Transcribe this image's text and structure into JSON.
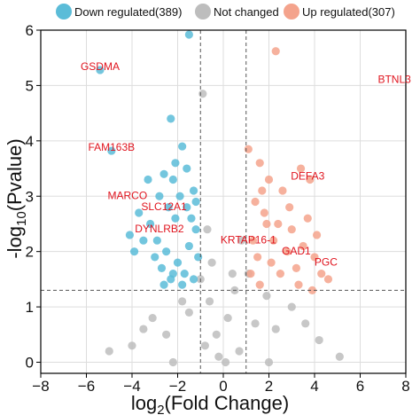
{
  "chart_data": {
    "type": "scatter",
    "subtype": "volcano",
    "xlabel_main": "log",
    "xlabel_sub": "2",
    "xlabel_rest": "(Fold Change)",
    "ylabel_pre": "-log",
    "ylabel_sub": "10",
    "ylabel_rest": "(Pvalue)",
    "xlim": [
      -8,
      8
    ],
    "ylim": [
      -0.2,
      6.0
    ],
    "xticks": [
      -8,
      -6,
      -4,
      -2,
      0,
      2,
      4,
      6,
      8
    ],
    "yticks": [
      0,
      1,
      2,
      3,
      4,
      5,
      6
    ],
    "grid": true,
    "legend_position": "top",
    "thresholds": {
      "x": [
        -1,
        1
      ],
      "y": 1.3
    },
    "series": [
      {
        "name": "Down regulated(389)",
        "color": "#5bbcd8",
        "points": [
          [
            -1.5,
            5.92
          ],
          [
            -5.4,
            5.28
          ],
          [
            -2.3,
            4.4
          ],
          [
            -4.9,
            3.82
          ],
          [
            -3.3,
            3.3
          ],
          [
            -2.6,
            3.4
          ],
          [
            -2.2,
            3.3
          ],
          [
            -1.9,
            3.0
          ],
          [
            -1.6,
            2.8
          ],
          [
            -1.4,
            2.6
          ],
          [
            -1.2,
            2.4
          ],
          [
            -3.7,
            2.7
          ],
          [
            -3.2,
            2.5
          ],
          [
            -2.9,
            2.2
          ],
          [
            -2.5,
            2.0
          ],
          [
            -2.0,
            1.8
          ],
          [
            -1.7,
            1.6
          ],
          [
            -1.3,
            1.5
          ],
          [
            -3.0,
            1.9
          ],
          [
            -2.7,
            1.7
          ],
          [
            -2.3,
            1.5
          ],
          [
            -1.8,
            1.4
          ],
          [
            -1.5,
            2.1
          ],
          [
            -2.1,
            2.6
          ],
          [
            -2.4,
            2.8
          ],
          [
            -2.8,
            3.0
          ],
          [
            -3.5,
            2.2
          ],
          [
            -4.1,
            2.3
          ],
          [
            -3.9,
            2.0
          ],
          [
            -2.6,
            1.4
          ],
          [
            -1.6,
            3.5
          ],
          [
            -1.8,
            3.9
          ],
          [
            -2.1,
            3.6
          ],
          [
            -1.3,
            3.1
          ],
          [
            -1.1,
            1.9
          ],
          [
            -1.2,
            2.9
          ],
          [
            -2.2,
            1.6
          ]
        ]
      },
      {
        "name": "Not changed",
        "color": "#bdbdbd",
        "points": [
          [
            -0.3,
            0.5
          ],
          [
            0.2,
            0.8
          ],
          [
            -0.6,
            1.1
          ],
          [
            0.5,
            1.3
          ],
          [
            -0.8,
            0.3
          ],
          [
            0.7,
            0.2
          ],
          [
            -1.5,
            0.9
          ],
          [
            1.4,
            0.7
          ],
          [
            -2.5,
            0.5
          ],
          [
            2.3,
            0.6
          ],
          [
            -3.1,
            0.8
          ],
          [
            3.0,
            1.0
          ],
          [
            -0.9,
            4.85
          ],
          [
            -0.7,
            2.4
          ],
          [
            0.8,
            2.2
          ],
          [
            -0.5,
            1.8
          ],
          [
            0.4,
            1.6
          ],
          [
            -4.0,
            0.3
          ],
          [
            4.2,
            0.4
          ],
          [
            -1.8,
            1.1
          ],
          [
            1.9,
            1.2
          ],
          [
            -5.0,
            0.2
          ],
          [
            5.1,
            0.1
          ],
          [
            -0.2,
            0.1
          ],
          [
            0.1,
            0.0
          ],
          [
            -2.2,
            0.0
          ],
          [
            2.0,
            0.0
          ],
          [
            -1.0,
            1.5
          ],
          [
            1.1,
            1.6
          ],
          [
            -3.5,
            0.6
          ],
          [
            3.6,
            0.7
          ]
        ]
      },
      {
        "name": "Up regulated(307)",
        "color": "#f4a38c",
        "points": [
          [
            2.3,
            5.62
          ],
          [
            1.1,
            3.85
          ],
          [
            1.6,
            3.6
          ],
          [
            2.0,
            3.3
          ],
          [
            2.6,
            3.1
          ],
          [
            3.4,
            3.5
          ],
          [
            3.8,
            3.3
          ],
          [
            1.4,
            2.9
          ],
          [
            1.8,
            2.7
          ],
          [
            2.4,
            2.5
          ],
          [
            3.0,
            2.4
          ],
          [
            3.5,
            2.1
          ],
          [
            4.0,
            1.9
          ],
          [
            4.3,
            1.6
          ],
          [
            4.6,
            1.5
          ],
          [
            3.9,
            1.3
          ],
          [
            1.2,
            1.6
          ],
          [
            1.6,
            1.4
          ],
          [
            2.1,
            1.8
          ],
          [
            2.8,
            2.0
          ],
          [
            3.2,
            1.7
          ],
          [
            1.3,
            2.2
          ],
          [
            2.2,
            2.2
          ],
          [
            2.9,
            2.8
          ],
          [
            1.5,
            1.9
          ],
          [
            1.9,
            2.5
          ],
          [
            2.5,
            1.6
          ],
          [
            3.7,
            2.6
          ],
          [
            4.1,
            2.3
          ],
          [
            1.7,
            3.1
          ],
          [
            3.3,
            1.4
          ]
        ]
      }
    ],
    "annotations": [
      {
        "label": "GSDMA",
        "x": -5.4,
        "y": 5.28
      },
      {
        "label": "BTNL3",
        "x": 7.5,
        "y": 5.05
      },
      {
        "label": "FAM163B",
        "x": -4.9,
        "y": 3.82
      },
      {
        "label": "DEFA3",
        "x": 3.7,
        "y": 3.3
      },
      {
        "label": "MARCO",
        "x": -4.2,
        "y": 2.95
      },
      {
        "label": "SLC12A1",
        "x": -2.6,
        "y": 2.75
      },
      {
        "label": "DYNLRB2",
        "x": -2.8,
        "y": 2.35
      },
      {
        "label": "KRTAP16-1",
        "x": 1.1,
        "y": 2.15
      },
      {
        "label": "GAD1",
        "x": 3.2,
        "y": 1.95
      },
      {
        "label": "PGC",
        "x": 4.5,
        "y": 1.75
      }
    ]
  }
}
